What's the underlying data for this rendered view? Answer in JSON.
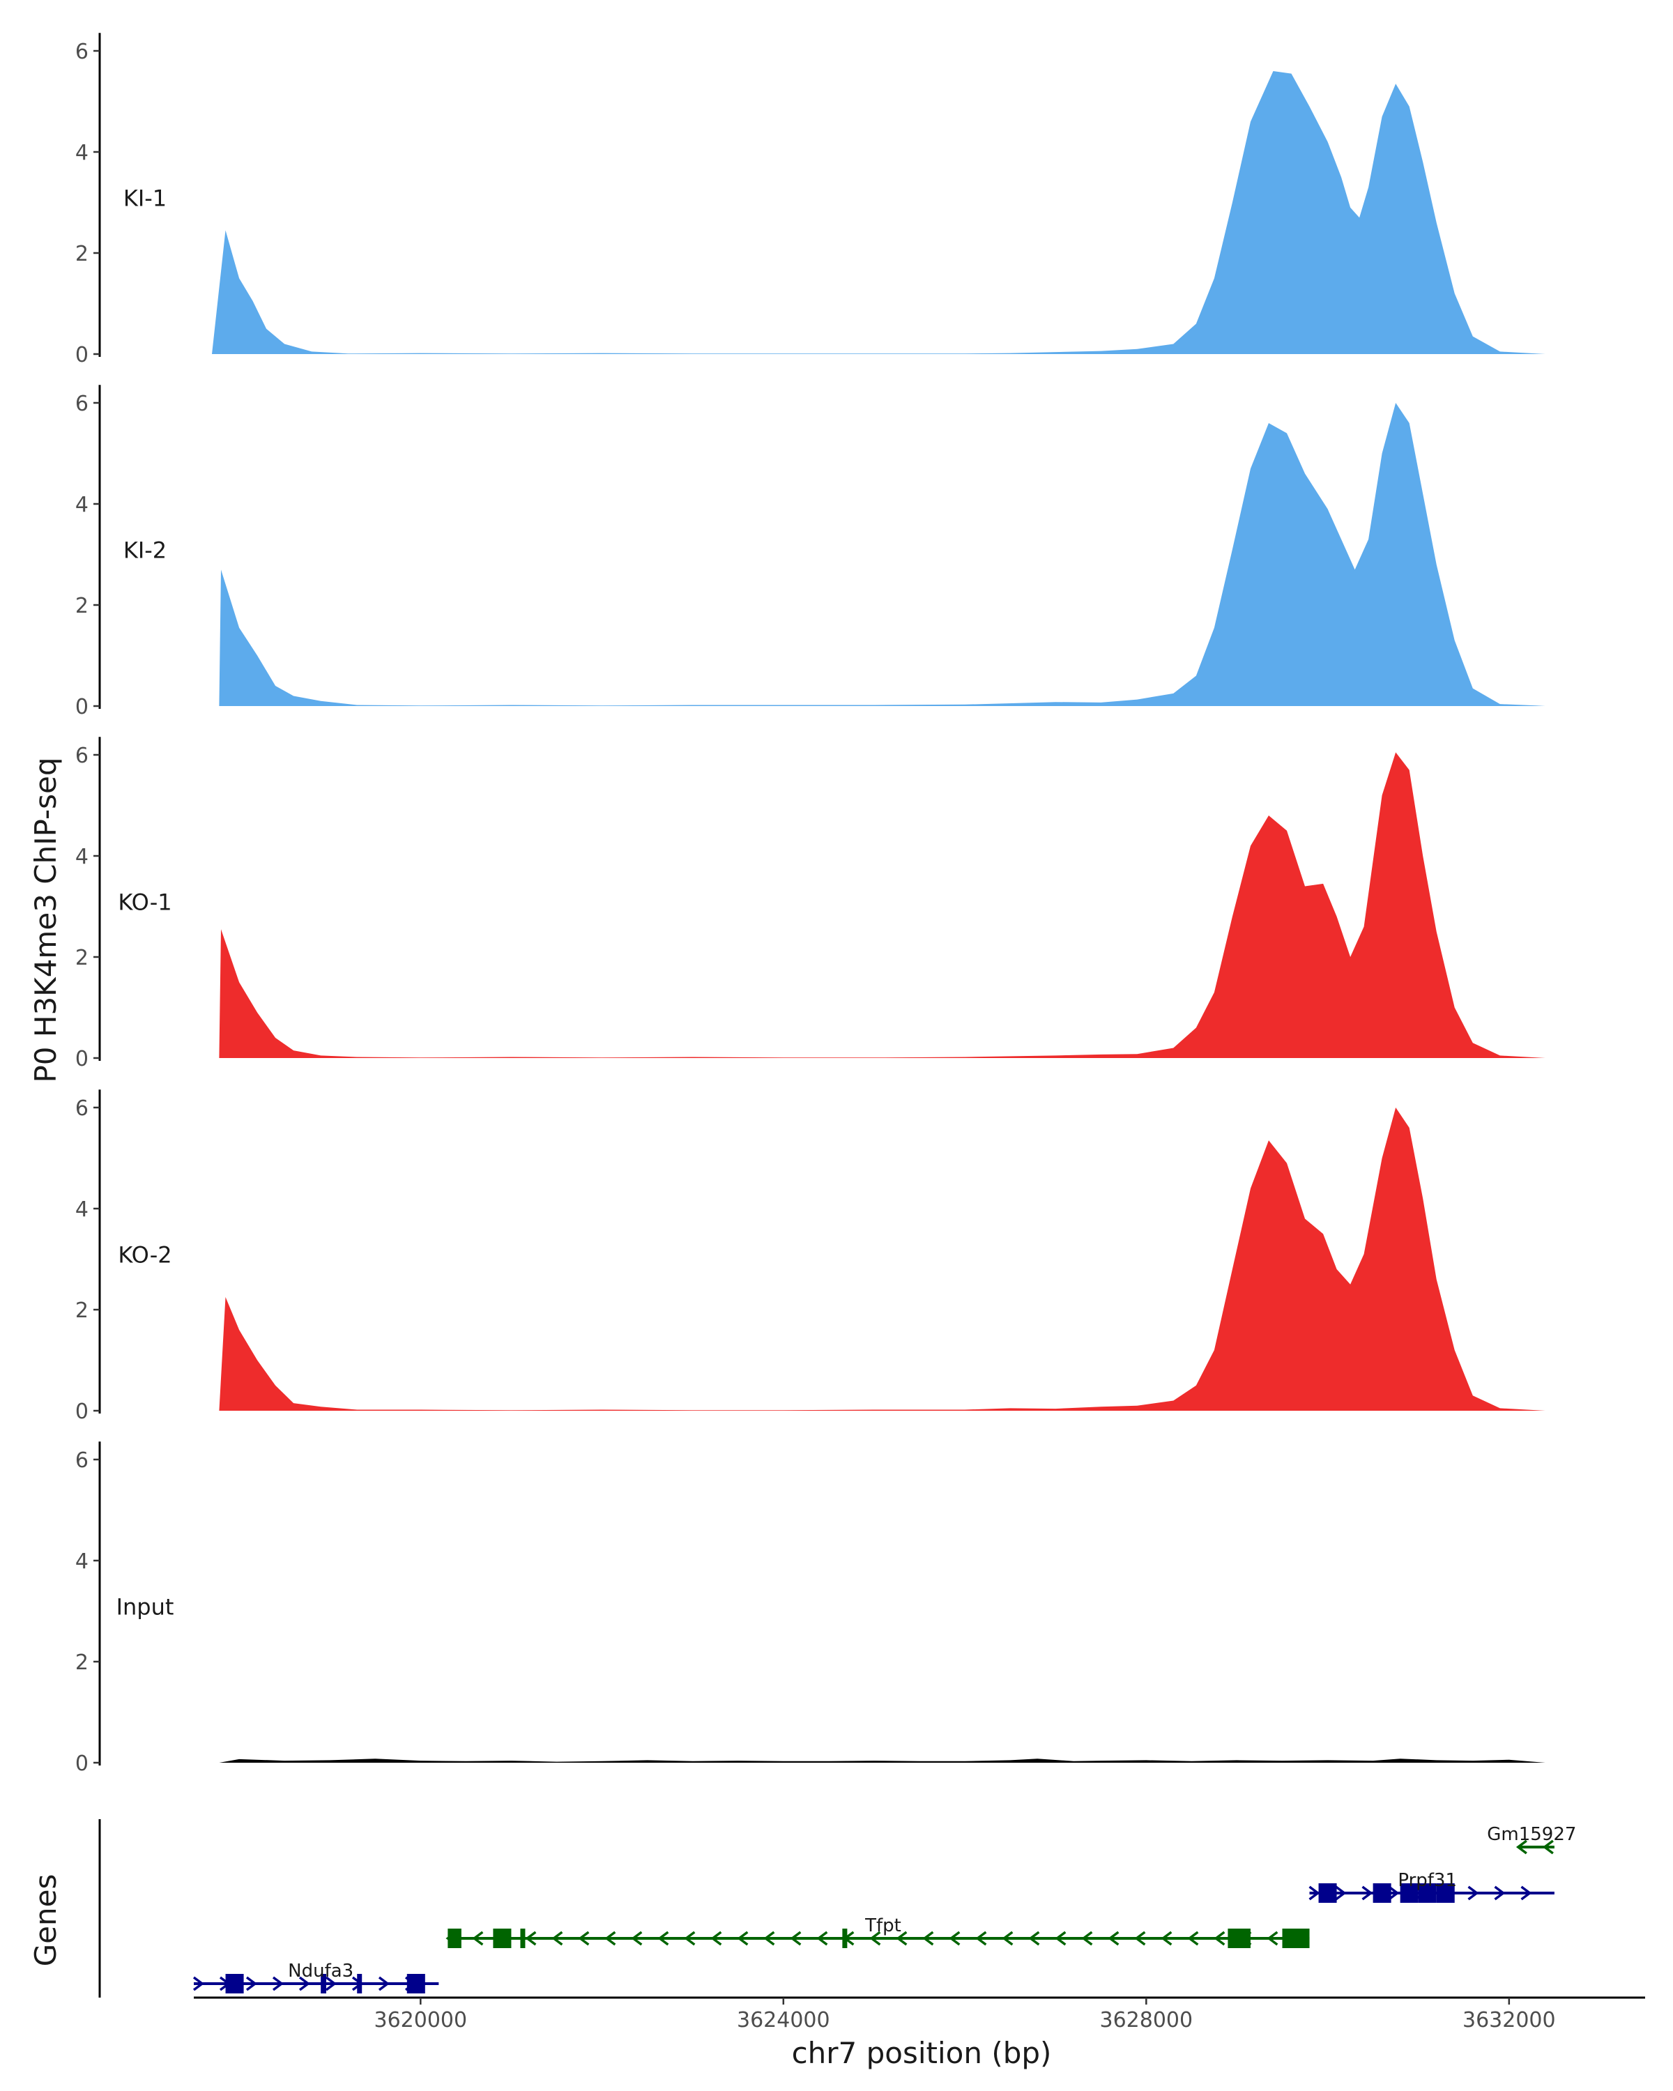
{
  "chart_data": {
    "type": "area",
    "title": "",
    "ylabel": "P0 H3K4me3 ChIP-seq",
    "xlabel": "chr7 position (bp)",
    "genes_label": "Genes",
    "xlim": [
      3617500,
      3633500
    ],
    "ylim": [
      0,
      6.3
    ],
    "y_ticks": [
      0,
      2,
      4,
      6
    ],
    "x_ticks": [
      3620000,
      3624000,
      3628000,
      3632000
    ],
    "x_tick_labels": [
      "3620000",
      "3624000",
      "3628000",
      "3632000"
    ],
    "colors": {
      "KI": "#5dabec",
      "KO": "#ee2c2c",
      "Input": "#000000",
      "gene_plus": "#00008b",
      "gene_minus": "#006400"
    },
    "tracks": [
      {
        "name": "KI-1",
        "color": "#5dabec",
        "points": [
          [
            3617700,
            0
          ],
          [
            3617850,
            2.45
          ],
          [
            3618000,
            1.5
          ],
          [
            3618150,
            1.05
          ],
          [
            3618300,
            0.5
          ],
          [
            3618500,
            0.2
          ],
          [
            3618800,
            0.05
          ],
          [
            3619200,
            0.01
          ],
          [
            3620000,
            0.02
          ],
          [
            3621000,
            0.01
          ],
          [
            3622000,
            0.02
          ],
          [
            3623000,
            0.01
          ],
          [
            3624000,
            0.01
          ],
          [
            3625000,
            0.01
          ],
          [
            3626000,
            0.01
          ],
          [
            3626500,
            0.02
          ],
          [
            3627000,
            0.04
          ],
          [
            3627500,
            0.06
          ],
          [
            3627900,
            0.1
          ],
          [
            3628300,
            0.2
          ],
          [
            3628550,
            0.6
          ],
          [
            3628750,
            1.5
          ],
          [
            3628950,
            3.0
          ],
          [
            3629150,
            4.6
          ],
          [
            3629400,
            5.6
          ],
          [
            3629600,
            5.55
          ],
          [
            3629800,
            4.9
          ],
          [
            3630000,
            4.2
          ],
          [
            3630150,
            3.5
          ],
          [
            3630250,
            2.9
          ],
          [
            3630350,
            2.7
          ],
          [
            3630450,
            3.3
          ],
          [
            3630600,
            4.7
          ],
          [
            3630750,
            5.35
          ],
          [
            3630900,
            4.9
          ],
          [
            3631050,
            3.8
          ],
          [
            3631200,
            2.6
          ],
          [
            3631400,
            1.2
          ],
          [
            3631600,
            0.35
          ],
          [
            3631900,
            0.05
          ],
          [
            3632300,
            0.01
          ],
          [
            3632400,
            0
          ]
        ]
      },
      {
        "name": "KI-2",
        "color": "#5dabec",
        "points": [
          [
            3617780,
            0
          ],
          [
            3617800,
            2.7
          ],
          [
            3618000,
            1.55
          ],
          [
            3618200,
            1.0
          ],
          [
            3618400,
            0.4
          ],
          [
            3618600,
            0.2
          ],
          [
            3618900,
            0.1
          ],
          [
            3619300,
            0.02
          ],
          [
            3620000,
            0.01
          ],
          [
            3621000,
            0.02
          ],
          [
            3622000,
            0.01
          ],
          [
            3623000,
            0.02
          ],
          [
            3624000,
            0.02
          ],
          [
            3625000,
            0.02
          ],
          [
            3626000,
            0.03
          ],
          [
            3627000,
            0.08
          ],
          [
            3627500,
            0.07
          ],
          [
            3627900,
            0.13
          ],
          [
            3628300,
            0.25
          ],
          [
            3628550,
            0.6
          ],
          [
            3628750,
            1.55
          ],
          [
            3628950,
            3.1
          ],
          [
            3629150,
            4.7
          ],
          [
            3629350,
            5.6
          ],
          [
            3629550,
            5.4
          ],
          [
            3629750,
            4.6
          ],
          [
            3630000,
            3.9
          ],
          [
            3630150,
            3.3
          ],
          [
            3630300,
            2.7
          ],
          [
            3630450,
            3.3
          ],
          [
            3630600,
            5.0
          ],
          [
            3630750,
            6.0
          ],
          [
            3630900,
            5.6
          ],
          [
            3631050,
            4.2
          ],
          [
            3631200,
            2.8
          ],
          [
            3631400,
            1.3
          ],
          [
            3631600,
            0.35
          ],
          [
            3631900,
            0.04
          ],
          [
            3632300,
            0.01
          ],
          [
            3632400,
            0
          ]
        ]
      },
      {
        "name": "KO-1",
        "color": "#ee2c2c",
        "points": [
          [
            3617780,
            0
          ],
          [
            3617800,
            2.55
          ],
          [
            3618000,
            1.5
          ],
          [
            3618200,
            0.9
          ],
          [
            3618400,
            0.4
          ],
          [
            3618600,
            0.15
          ],
          [
            3618900,
            0.05
          ],
          [
            3619300,
            0.02
          ],
          [
            3620000,
            0.01
          ],
          [
            3621000,
            0.02
          ],
          [
            3622000,
            0.01
          ],
          [
            3623000,
            0.02
          ],
          [
            3624000,
            0.01
          ],
          [
            3625000,
            0.01
          ],
          [
            3626000,
            0.02
          ],
          [
            3627000,
            0.05
          ],
          [
            3627500,
            0.07
          ],
          [
            3627900,
            0.08
          ],
          [
            3628300,
            0.2
          ],
          [
            3628550,
            0.6
          ],
          [
            3628750,
            1.3
          ],
          [
            3628950,
            2.8
          ],
          [
            3629150,
            4.2
          ],
          [
            3629350,
            4.8
          ],
          [
            3629550,
            4.5
          ],
          [
            3629750,
            3.4
          ],
          [
            3629950,
            3.45
          ],
          [
            3630100,
            2.8
          ],
          [
            3630250,
            2.0
          ],
          [
            3630400,
            2.6
          ],
          [
            3630600,
            5.2
          ],
          [
            3630750,
            6.05
          ],
          [
            3630900,
            5.7
          ],
          [
            3631050,
            4.0
          ],
          [
            3631200,
            2.5
          ],
          [
            3631400,
            1.0
          ],
          [
            3631600,
            0.3
          ],
          [
            3631900,
            0.05
          ],
          [
            3632300,
            0.01
          ],
          [
            3632400,
            0
          ]
        ]
      },
      {
        "name": "KO-2",
        "color": "#ee2c2c",
        "points": [
          [
            3617780,
            0
          ],
          [
            3617850,
            2.25
          ],
          [
            3618000,
            1.6
          ],
          [
            3618200,
            1.0
          ],
          [
            3618400,
            0.5
          ],
          [
            3618600,
            0.15
          ],
          [
            3618900,
            0.08
          ],
          [
            3619300,
            0.02
          ],
          [
            3620000,
            0.02
          ],
          [
            3621000,
            0.01
          ],
          [
            3622000,
            0.02
          ],
          [
            3623000,
            0.01
          ],
          [
            3624000,
            0.01
          ],
          [
            3625000,
            0.02
          ],
          [
            3626000,
            0.02
          ],
          [
            3626500,
            0.05
          ],
          [
            3627000,
            0.04
          ],
          [
            3627500,
            0.08
          ],
          [
            3627900,
            0.1
          ],
          [
            3628300,
            0.2
          ],
          [
            3628550,
            0.5
          ],
          [
            3628750,
            1.2
          ],
          [
            3628950,
            2.8
          ],
          [
            3629150,
            4.4
          ],
          [
            3629350,
            5.35
          ],
          [
            3629550,
            4.9
          ],
          [
            3629750,
            3.8
          ],
          [
            3629950,
            3.5
          ],
          [
            3630100,
            2.8
          ],
          [
            3630250,
            2.5
          ],
          [
            3630400,
            3.1
          ],
          [
            3630600,
            5.0
          ],
          [
            3630750,
            6.0
          ],
          [
            3630900,
            5.6
          ],
          [
            3631050,
            4.2
          ],
          [
            3631200,
            2.6
          ],
          [
            3631400,
            1.2
          ],
          [
            3631600,
            0.3
          ],
          [
            3631900,
            0.05
          ],
          [
            3632300,
            0.01
          ],
          [
            3632400,
            0
          ]
        ]
      },
      {
        "name": "Input",
        "color": "#000000",
        "points": [
          [
            3617780,
            0
          ],
          [
            3618000,
            0.07
          ],
          [
            3618500,
            0.04
          ],
          [
            3619000,
            0.05
          ],
          [
            3619500,
            0.08
          ],
          [
            3620000,
            0.04
          ],
          [
            3620500,
            0.03
          ],
          [
            3621000,
            0.04
          ],
          [
            3621500,
            0.02
          ],
          [
            3622000,
            0.03
          ],
          [
            3622500,
            0.05
          ],
          [
            3623000,
            0.03
          ],
          [
            3623500,
            0.04
          ],
          [
            3624000,
            0.03
          ],
          [
            3624500,
            0.03
          ],
          [
            3625000,
            0.04
          ],
          [
            3625500,
            0.03
          ],
          [
            3626000,
            0.03
          ],
          [
            3626500,
            0.05
          ],
          [
            3626800,
            0.08
          ],
          [
            3627200,
            0.03
          ],
          [
            3627500,
            0.04
          ],
          [
            3628000,
            0.05
          ],
          [
            3628500,
            0.03
          ],
          [
            3629000,
            0.05
          ],
          [
            3629500,
            0.04
          ],
          [
            3630000,
            0.05
          ],
          [
            3630500,
            0.04
          ],
          [
            3630800,
            0.08
          ],
          [
            3631200,
            0.05
          ],
          [
            3631600,
            0.04
          ],
          [
            3632000,
            0.06
          ],
          [
            3632400,
            0
          ]
        ]
      }
    ],
    "genes": [
      {
        "name": "Ndufa3",
        "strand": "+",
        "row": 0,
        "start": 3617500,
        "end": 3620200,
        "color": "#00008b",
        "exons": [
          [
            3617850,
            3618050
          ],
          [
            3619850,
            3620050
          ]
        ],
        "small_exons": [
          [
            3618900,
            3618960
          ],
          [
            3619300,
            3619340
          ]
        ]
      },
      {
        "name": "Tfpt",
        "strand": "-",
        "row": 1,
        "start": 3620300,
        "end": 3629800,
        "color": "#006400",
        "exons": [
          [
            3620300,
            3620450
          ],
          [
            3620800,
            3621000
          ],
          [
            3628900,
            3629150
          ],
          [
            3629500,
            3629800
          ]
        ],
        "small_exons": [
          [
            3621100,
            3621150
          ],
          [
            3624650,
            3624700
          ]
        ]
      },
      {
        "name": "Prpf31",
        "strand": "+",
        "row": 2,
        "start": 3629800,
        "end": 3632500,
        "color": "#00008b",
        "exons": [
          [
            3629900,
            3630100
          ],
          [
            3630500,
            3630700
          ],
          [
            3630800,
            3631000
          ],
          [
            3631000,
            3631200
          ],
          [
            3631200,
            3631400
          ]
        ],
        "small_exons": []
      },
      {
        "name": "Gm15927",
        "strand": "-",
        "row": 3,
        "start": 3632100,
        "end": 3632500,
        "color": "#006400",
        "exons": [],
        "small_exons": []
      }
    ]
  }
}
